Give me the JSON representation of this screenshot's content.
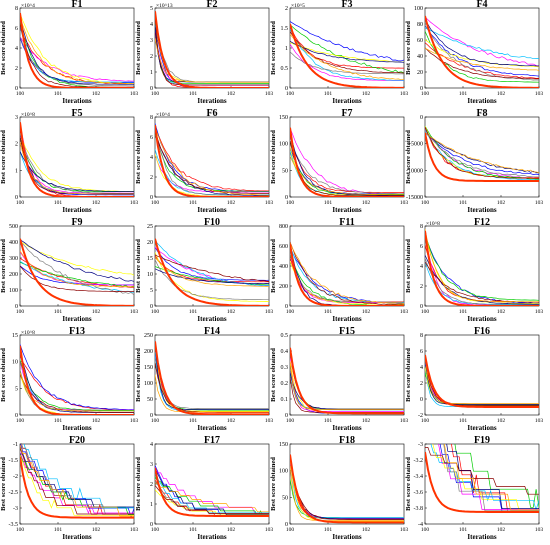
{
  "figure": {
    "xlabel": "Iterations",
    "ylabel": "Best score obtained",
    "x_ticks": [
      "10^0",
      "10^1",
      "10^2",
      "10^3"
    ],
    "colors": {
      "ours": "#ff3300",
      "series": [
        "#ff0000",
        "#0000ff",
        "#ff00ff",
        "#00cc00",
        "#00bfff",
        "#ffff00",
        "#808080",
        "#000080",
        "#8b0000",
        "#ffa500",
        "#008080",
        "#9400d3"
      ]
    }
  },
  "chart_data": [
    {
      "type": "line",
      "title": "F1",
      "exp": "×10^4",
      "ylim": [
        0,
        8
      ],
      "yticks": [
        "0",
        "2",
        "4",
        "6",
        "8"
      ],
      "log_x": true,
      "xlim": [
        1,
        1000
      ],
      "start": 7.5,
      "end": 0,
      "shape": "fast"
    },
    {
      "type": "line",
      "title": "F2",
      "exp": "×10^13",
      "ylim": [
        0,
        5
      ],
      "yticks": [
        "0",
        "1",
        "2",
        "3",
        "4",
        "5"
      ],
      "log_x": true,
      "xlim": [
        1,
        1000
      ],
      "start": 4.8,
      "end": 0,
      "shape": "spike"
    },
    {
      "type": "line",
      "title": "F3",
      "exp": "×10^5",
      "ylim": [
        0,
        2
      ],
      "yticks": [
        "0",
        "0.5",
        "1",
        "1.5",
        "2"
      ],
      "log_x": true,
      "xlim": [
        1,
        1000
      ],
      "start": 1.6,
      "end": 0,
      "shape": "slow"
    },
    {
      "type": "line",
      "title": "F4",
      "exp": "",
      "ylim": [
        0,
        100
      ],
      "yticks": [
        "0",
        "20",
        "40",
        "60",
        "80",
        "100"
      ],
      "log_x": true,
      "xlim": [
        1,
        1000
      ],
      "start": 90,
      "end": 0,
      "shape": "slow"
    },
    {
      "type": "line",
      "title": "F5",
      "exp": "×10^8",
      "ylim": [
        0,
        3
      ],
      "yticks": [
        "0",
        "1",
        "2",
        "3"
      ],
      "log_x": true,
      "xlim": [
        1,
        1000
      ],
      "start": 2.8,
      "end": 0,
      "shape": "fast"
    },
    {
      "type": "line",
      "title": "F6",
      "exp": "×10^4",
      "ylim": [
        0,
        8
      ],
      "yticks": [
        "0",
        "2",
        "4",
        "6",
        "8"
      ],
      "log_x": true,
      "xlim": [
        1,
        1000
      ],
      "start": 7.2,
      "end": 0,
      "shape": "fast"
    },
    {
      "type": "line",
      "title": "F7",
      "exp": "",
      "ylim": [
        0,
        150
      ],
      "yticks": [
        "0",
        "50",
        "100",
        "150"
      ],
      "log_x": true,
      "xlim": [
        1,
        1000
      ],
      "start": 130,
      "end": 0,
      "shape": "fast"
    },
    {
      "type": "line",
      "title": "F8",
      "exp": "",
      "ylim": [
        -15000,
        0
      ],
      "yticks": [
        "-15000",
        "-10000",
        "-5000",
        "0"
      ],
      "log_x": true,
      "xlim": [
        1,
        1000
      ],
      "start": -3000,
      "end": -12000,
      "shape": "down"
    },
    {
      "type": "line",
      "title": "F9",
      "exp": "",
      "ylim": [
        0,
        500
      ],
      "yticks": [
        "0",
        "100",
        "200",
        "300",
        "400",
        "500"
      ],
      "log_x": true,
      "xlim": [
        1,
        1000
      ],
      "start": 420,
      "end": 0,
      "shape": "slow"
    },
    {
      "type": "line",
      "title": "F10",
      "exp": "",
      "ylim": [
        0,
        25
      ],
      "yticks": [
        "0",
        "5",
        "10",
        "15",
        "20",
        "25"
      ],
      "log_x": true,
      "xlim": [
        1,
        1000
      ],
      "start": 21,
      "end": 0,
      "shape": "slow"
    },
    {
      "type": "line",
      "title": "F11",
      "exp": "",
      "ylim": [
        0,
        800
      ],
      "yticks": [
        "0",
        "200",
        "400",
        "600",
        "800"
      ],
      "log_x": true,
      "xlim": [
        1,
        1000
      ],
      "start": 620,
      "end": 0,
      "shape": "fast"
    },
    {
      "type": "line",
      "title": "F12",
      "exp": "×10^8",
      "ylim": [
        0,
        8
      ],
      "yticks": [
        "0",
        "2",
        "4",
        "6",
        "8"
      ],
      "log_x": true,
      "xlim": [
        1,
        1000
      ],
      "start": 7.5,
      "end": 0,
      "shape": "fast"
    },
    {
      "type": "line",
      "title": "F13",
      "exp": "×10^8",
      "ylim": [
        0,
        15
      ],
      "yticks": [
        "0",
        "5",
        "10",
        "15"
      ],
      "log_x": true,
      "xlim": [
        1,
        1000
      ],
      "start": 13,
      "end": 0,
      "shape": "fast"
    },
    {
      "type": "line",
      "title": "F14",
      "exp": "",
      "ylim": [
        0,
        250
      ],
      "yticks": [
        "0",
        "50",
        "100",
        "150",
        "200",
        "250"
      ],
      "log_x": true,
      "xlim": [
        1,
        1000
      ],
      "start": 230,
      "end": 2,
      "shape": "spike"
    },
    {
      "type": "line",
      "title": "F15",
      "exp": "",
      "ylim": [
        0,
        0.5
      ],
      "yticks": [
        "0",
        "0.1",
        "0.2",
        "0.3",
        "0.4",
        "0.5"
      ],
      "log_x": true,
      "xlim": [
        1,
        1000
      ],
      "start": 0.42,
      "end": 0.01,
      "shape": "spike"
    },
    {
      "type": "line",
      "title": "F16",
      "exp": "",
      "ylim": [
        -2,
        8
      ],
      "yticks": [
        "-2",
        "0",
        "2",
        "4",
        "6",
        "8"
      ],
      "log_x": true,
      "xlim": [
        1,
        1000
      ],
      "start": 5.5,
      "end": -1,
      "shape": "spike"
    },
    {
      "type": "line",
      "title": "F20",
      "exp": "",
      "ylim": [
        -3.5,
        -1
      ],
      "yticks": [
        "-3.5",
        "-3",
        "-2.5",
        "-2",
        "-1.5",
        "-1"
      ],
      "log_x": true,
      "xlim": [
        1,
        1000
      ],
      "start": -1.4,
      "end": -3.3,
      "shape": "steps"
    },
    {
      "type": "line",
      "title": "F17",
      "exp": "",
      "ylim": [
        0,
        4
      ],
      "yticks": [
        "0",
        "1",
        "2",
        "3",
        "4"
      ],
      "log_x": true,
      "xlim": [
        1,
        1000
      ],
      "start": 2.8,
      "end": 0.4,
      "shape": "steps"
    },
    {
      "type": "line",
      "title": "F18",
      "exp": "",
      "ylim": [
        0,
        150
      ],
      "yticks": [
        "0",
        "50",
        "100",
        "150"
      ],
      "log_x": true,
      "xlim": [
        1,
        1000
      ],
      "start": 130,
      "end": 3,
      "shape": "spike"
    },
    {
      "type": "line",
      "title": "F19",
      "exp": "",
      "ylim": [
        -4,
        -3
      ],
      "yticks": [
        "-4",
        "-3.8",
        "-3.6",
        "-3.4",
        "-3.2",
        "-3"
      ],
      "log_x": true,
      "xlim": [
        1,
        1000
      ],
      "start": -3.1,
      "end": -3.85,
      "shape": "steps"
    }
  ]
}
